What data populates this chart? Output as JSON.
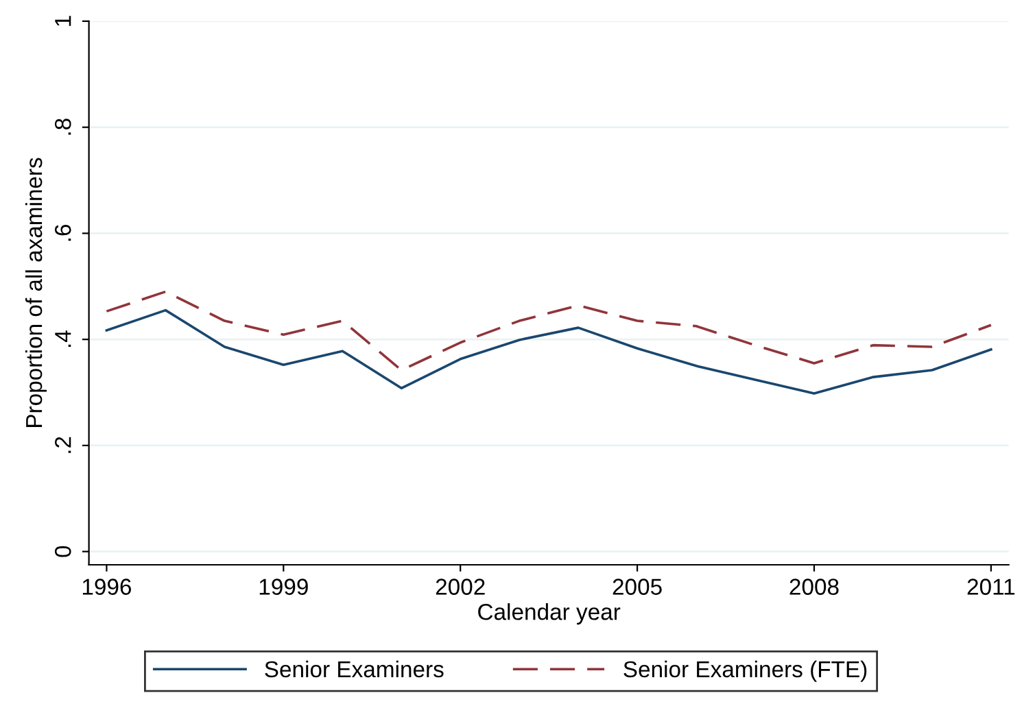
{
  "chart_data": {
    "type": "line",
    "xlabel": "Calendar year",
    "ylabel": "Proportion of all axaminers",
    "x": [
      1996,
      1997,
      1998,
      1999,
      2000,
      2001,
      2002,
      2003,
      2004,
      2005,
      2006,
      2007,
      2008,
      2009,
      2010,
      2011
    ],
    "series": [
      {
        "name": "Senior Examiners",
        "color": "#1a476f",
        "line_style": "solid",
        "values": [
          0.417,
          0.455,
          0.386,
          0.352,
          0.378,
          0.308,
          0.363,
          0.399,
          0.422,
          0.383,
          0.35,
          0.324,
          0.298,
          0.329,
          0.342,
          0.381
        ]
      },
      {
        "name": "Senior Examiners (FTE)",
        "color": "#90353b",
        "line_style": "dashed",
        "values": [
          0.453,
          0.49,
          0.435,
          0.409,
          0.435,
          0.342,
          0.394,
          0.435,
          0.464,
          0.435,
          0.425,
          0.389,
          0.355,
          0.389,
          0.386,
          0.427
        ]
      }
    ],
    "xlim": [
      1995.7,
      2011.3
    ],
    "xticks": [
      1996,
      1999,
      2002,
      2005,
      2008,
      2011
    ],
    "ylim": [
      -0.025,
      1.0
    ],
    "yticks": [
      0,
      {
        "value": 0.2,
        "label": ".2"
      },
      {
        "value": 0.4,
        "label": ".4"
      },
      {
        "value": 0.6,
        "label": ".6"
      },
      {
        "value": 0.8,
        "label": ".8"
      },
      1
    ],
    "grid": "y",
    "legend": "bottom",
    "marker": "none"
  }
}
